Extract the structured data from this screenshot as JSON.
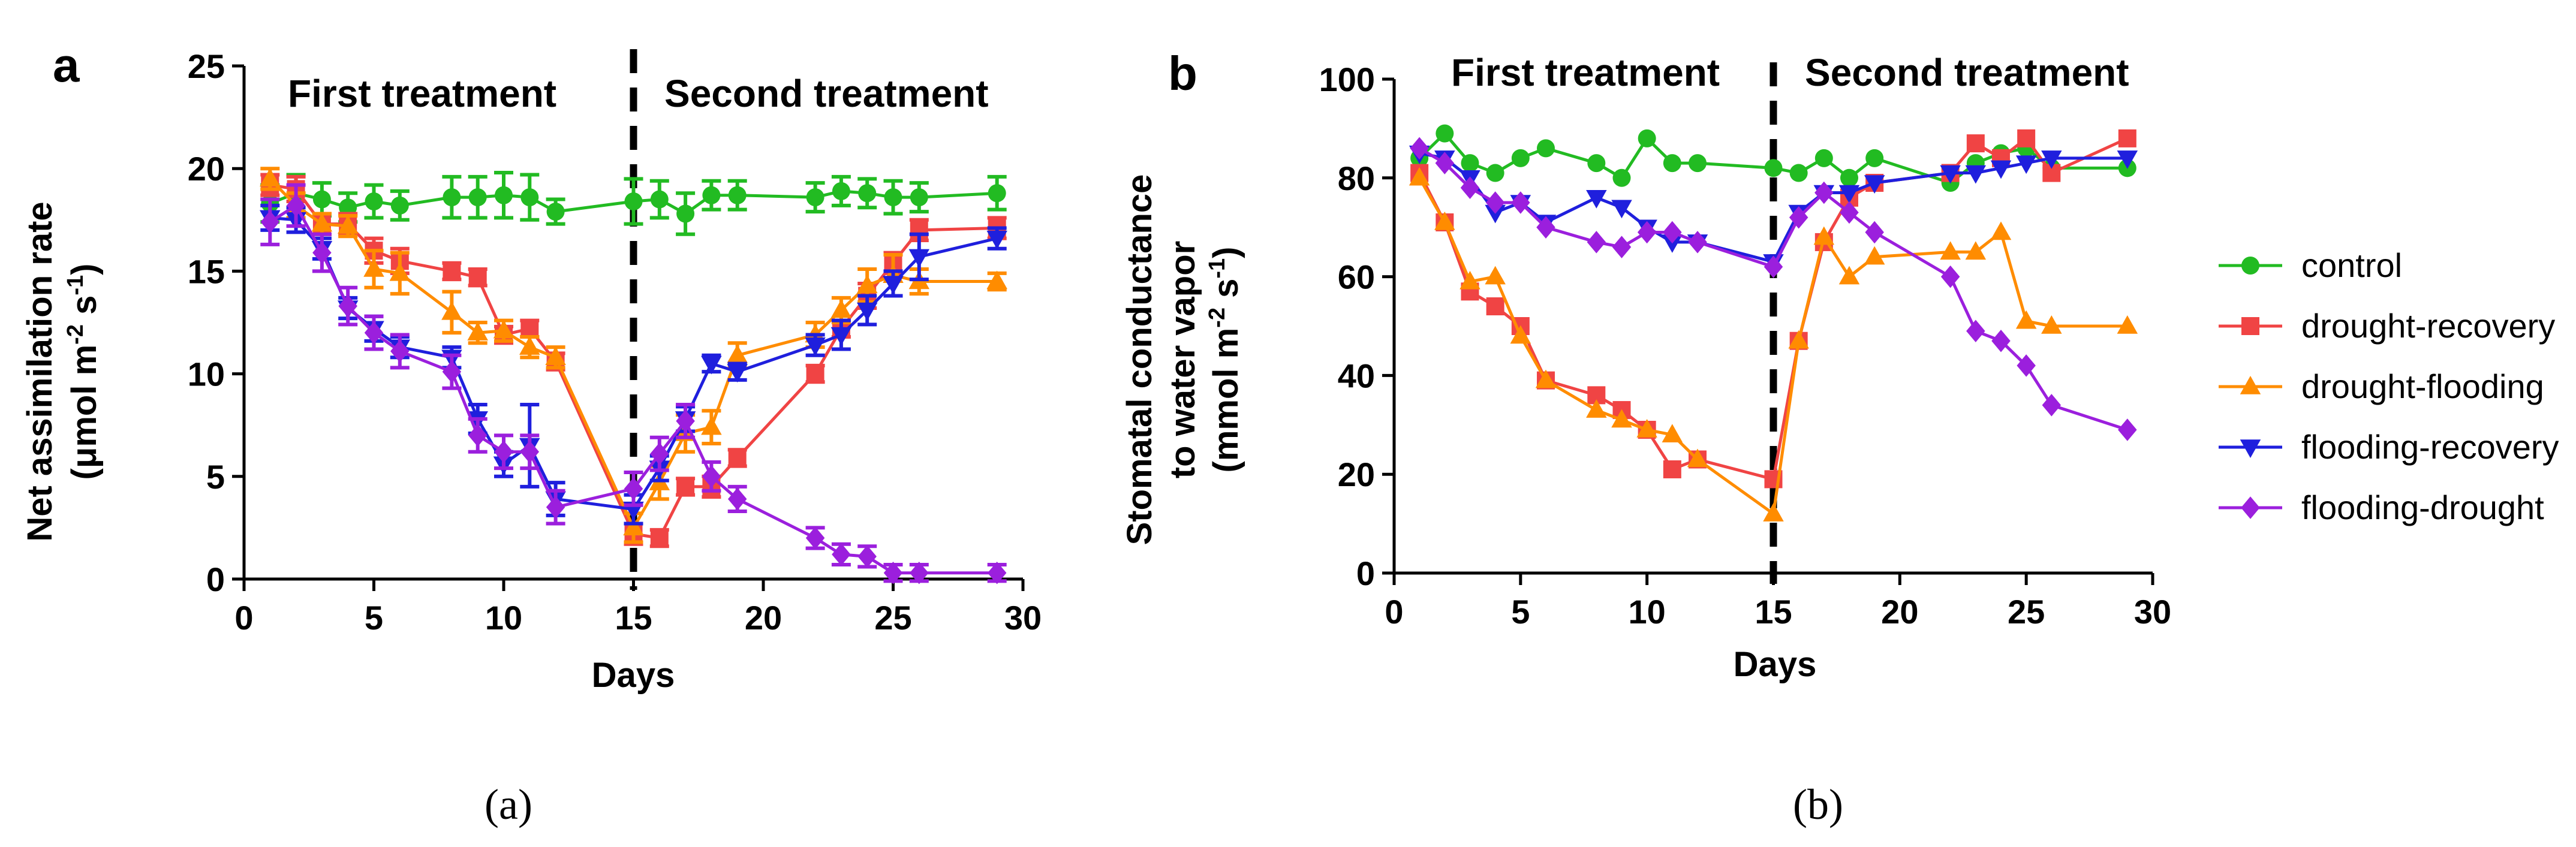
{
  "chart_data": [
    {
      "type": "line",
      "panel_letter": "a",
      "caption": "(a)",
      "xlabel": "Days",
      "ylabel_line1": "Net assimilation rate",
      "ylabel_line2_parts": [
        "(μmol m",
        "-2",
        " s",
        "-1",
        ")"
      ],
      "xlim": [
        0,
        30
      ],
      "ylim": [
        0,
        25
      ],
      "xticks": [
        "0",
        "5",
        "10",
        "15",
        "20",
        "25",
        "30"
      ],
      "yticks": [
        "0",
        "5",
        "10",
        "15",
        "20",
        "25"
      ],
      "divider_x": 15,
      "region_labels": [
        "First treatment",
        "Second treatment"
      ],
      "series": [
        {
          "name": "control",
          "color": "#22bb22",
          "marker": "circle",
          "x": [
            1,
            2,
            3,
            4,
            5,
            6,
            8,
            9,
            10,
            11,
            12,
            15,
            16,
            17,
            18,
            19,
            22,
            23,
            24,
            25,
            26,
            29
          ],
          "y": [
            18.3,
            18.8,
            18.5,
            18.1,
            18.4,
            18.2,
            18.6,
            18.6,
            18.7,
            18.6,
            17.9,
            18.4,
            18.5,
            17.8,
            18.7,
            18.7,
            18.6,
            18.9,
            18.8,
            18.6,
            18.6,
            18.8
          ],
          "err": [
            0.9,
            0.9,
            0.8,
            0.7,
            0.8,
            0.7,
            1.0,
            1.0,
            1.1,
            1.1,
            0.6,
            1.1,
            0.9,
            1.0,
            0.7,
            0.7,
            0.7,
            0.7,
            0.7,
            0.8,
            0.7,
            0.8
          ]
        },
        {
          "name": "drought-recovery",
          "color": "#f04444",
          "marker": "square",
          "x": [
            1,
            2,
            3,
            4,
            5,
            6,
            8,
            9,
            10,
            11,
            12,
            15,
            16,
            17,
            18,
            19,
            22,
            23,
            24,
            25,
            26,
            29
          ],
          "y": [
            19.2,
            19.0,
            17.3,
            17.3,
            16.0,
            15.5,
            15.0,
            14.7,
            11.9,
            12.2,
            10.6,
            2.2,
            2.0,
            4.5,
            4.5,
            5.9,
            10.0,
            12.2,
            13.8,
            15.4,
            17.0,
            17.1
          ],
          "err": [
            0.5,
            0.6,
            0.5,
            0.5,
            0.6,
            0.6,
            0.4,
            0.4,
            0.4,
            0.4,
            0.4,
            0.5,
            0.4,
            0.4,
            0.5,
            0.4,
            0.4,
            0.4,
            0.6,
            0.5,
            0.5,
            0.5
          ]
        },
        {
          "name": "drought-flooding",
          "color": "#ff8c00",
          "marker": "triangle-up",
          "x": [
            1,
            2,
            3,
            4,
            5,
            6,
            8,
            9,
            10,
            11,
            12,
            15,
            16,
            17,
            18,
            19,
            22,
            23,
            24,
            25,
            26,
            29
          ],
          "y": [
            19.5,
            18.2,
            17.3,
            17.2,
            15.1,
            14.9,
            13.0,
            12.0,
            12.1,
            11.3,
            10.8,
            2.5,
            4.7,
            7.1,
            7.4,
            10.9,
            11.9,
            13.1,
            14.3,
            14.8,
            14.5,
            14.5
          ],
          "err": [
            0.5,
            0.6,
            0.5,
            0.5,
            0.9,
            1.0,
            1.0,
            0.5,
            0.5,
            0.5,
            0.5,
            0.7,
            0.8,
            0.9,
            0.8,
            0.6,
            0.6,
            0.6,
            0.8,
            1.0,
            0.6,
            0.4
          ]
        },
        {
          "name": "flooding-recovery",
          "color": "#1f1fdd",
          "marker": "triangle-down",
          "x": [
            1,
            2,
            3,
            4,
            5,
            6,
            8,
            9,
            10,
            11,
            12,
            15,
            16,
            17,
            18,
            19,
            22,
            23,
            24,
            25,
            26,
            29
          ],
          "y": [
            17.6,
            17.5,
            16.1,
            13.2,
            12.2,
            11.3,
            10.8,
            7.8,
            5.6,
            6.5,
            3.9,
            3.4,
            5.4,
            7.8,
            10.5,
            10.1,
            11.4,
            11.9,
            13.1,
            14.4,
            15.7,
            16.6
          ],
          "err": [
            0.6,
            0.6,
            0.5,
            0.5,
            0.6,
            0.5,
            0.5,
            0.7,
            0.6,
            2.0,
            0.8,
            0.7,
            0.6,
            0.6,
            0.4,
            0.4,
            0.5,
            0.7,
            0.7,
            0.6,
            1.1,
            0.5
          ]
        },
        {
          "name": "flooding-drought",
          "color": "#9b1fdd",
          "marker": "diamond",
          "x": [
            1,
            2,
            3,
            4,
            5,
            6,
            8,
            9,
            10,
            11,
            12,
            15,
            16,
            17,
            18,
            19,
            22,
            23,
            24,
            25,
            26,
            29
          ],
          "y": [
            17.4,
            18.2,
            15.9,
            13.3,
            12.0,
            11.1,
            10.1,
            7.0,
            6.2,
            6.2,
            3.5,
            4.4,
            6.1,
            7.7,
            5.0,
            3.9,
            2.0,
            1.2,
            1.1,
            0.3,
            0.3,
            0.3
          ],
          "err": [
            1.1,
            1.0,
            0.9,
            0.9,
            0.8,
            0.8,
            0.8,
            0.8,
            0.8,
            0.8,
            0.8,
            0.8,
            0.8,
            0.8,
            0.7,
            0.6,
            0.5,
            0.5,
            0.5,
            0.4,
            0.4,
            0.4
          ]
        }
      ]
    },
    {
      "type": "line",
      "panel_letter": "b",
      "caption": "(b)",
      "xlabel": "Days",
      "ylabel_line1": "Stomatal conductance",
      "ylabel_line2": "to water vapor",
      "ylabel_line3_parts": [
        "(mmol m",
        "-2",
        " s",
        "-1",
        ")"
      ],
      "xlim": [
        0,
        30
      ],
      "ylim": [
        0,
        100
      ],
      "xticks": [
        "0",
        "5",
        "10",
        "15",
        "20",
        "25",
        "30"
      ],
      "yticks": [
        "0",
        "20",
        "40",
        "60",
        "80",
        "100"
      ],
      "divider_x": 15,
      "region_labels": [
        "First treatment",
        "Second treatment"
      ],
      "series": [
        {
          "name": "control",
          "color": "#22bb22",
          "marker": "circle",
          "x": [
            1,
            2,
            3,
            4,
            5,
            6,
            8,
            9,
            10,
            11,
            12,
            15,
            16,
            17,
            18,
            19,
            22,
            23,
            24,
            25,
            26,
            29
          ],
          "y": [
            84,
            89,
            83,
            81,
            84,
            86,
            83,
            80,
            88,
            83,
            83,
            82,
            81,
            84,
            80,
            84,
            79,
            83,
            85,
            86,
            82,
            82
          ]
        },
        {
          "name": "drought-recovery",
          "color": "#f04444",
          "marker": "square",
          "x": [
            1,
            2,
            3,
            4,
            5,
            6,
            8,
            9,
            10,
            11,
            12,
            15,
            16,
            17,
            18,
            19,
            22,
            23,
            24,
            25,
            26,
            29
          ],
          "y": [
            81,
            71,
            57,
            54,
            50,
            39,
            36,
            33,
            29,
            21,
            23,
            19,
            47,
            67,
            76,
            79,
            81,
            87,
            84,
            88,
            81,
            88
          ]
        },
        {
          "name": "drought-flooding",
          "color": "#ff8c00",
          "marker": "triangle-up",
          "x": [
            1,
            2,
            3,
            4,
            5,
            6,
            8,
            9,
            10,
            11,
            12,
            15,
            16,
            17,
            18,
            19,
            22,
            23,
            24,
            25,
            26,
            29
          ],
          "y": [
            80,
            71,
            59,
            60,
            48,
            39,
            33,
            31,
            29,
            28,
            23,
            12,
            47,
            68,
            60,
            64,
            65,
            65,
            69,
            51,
            50,
            50
          ]
        },
        {
          "name": "flooding-recovery",
          "color": "#1f1fdd",
          "marker": "triangle-down",
          "x": [
            1,
            2,
            3,
            4,
            5,
            6,
            8,
            9,
            10,
            11,
            12,
            15,
            16,
            17,
            18,
            19,
            22,
            23,
            24,
            25,
            26,
            29
          ],
          "y": [
            85,
            84,
            80,
            73,
            75,
            71,
            76,
            74,
            70,
            67,
            67,
            63,
            73,
            77,
            77,
            79,
            81,
            81,
            82,
            83,
            84,
            84
          ]
        },
        {
          "name": "flooding-drought",
          "color": "#9b1fdd",
          "marker": "diamond",
          "x": [
            1,
            2,
            3,
            4,
            5,
            6,
            8,
            9,
            10,
            11,
            12,
            15,
            16,
            17,
            18,
            19,
            22,
            23,
            24,
            25,
            26,
            29
          ],
          "y": [
            86,
            83,
            78,
            75,
            75,
            70,
            67,
            66,
            69,
            69,
            67,
            62,
            72,
            77,
            73,
            69,
            60,
            49,
            47,
            42,
            34,
            29
          ]
        }
      ]
    }
  ]
}
